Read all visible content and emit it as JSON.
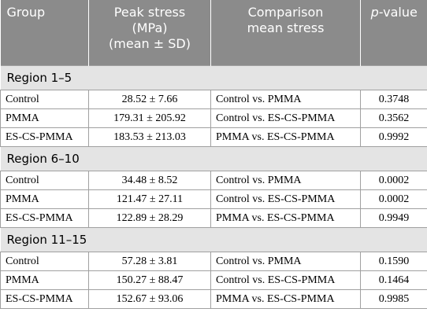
{
  "table": {
    "header": [
      "Group",
      [
        "Peak stress",
        "(MPa)",
        "(mean ± SD)"
      ],
      [
        "Comparison",
        "mean stress"
      ],
      [
        "p",
        "-value"
      ]
    ],
    "sections": [
      {
        "title": "Region 1–5",
        "rows": [
          [
            "Control",
            "28.52 ± 7.66",
            "Control vs. PMMA",
            "0.3748"
          ],
          [
            "PMMA",
            "179.31 ± 205.92",
            "Control vs. ES-CS-PMMA",
            "0.3562"
          ],
          [
            "ES-CS-PMMA",
            "183.53 ± 213.03",
            "PMMA vs. ES-CS-PMMA",
            "0.9992"
          ]
        ]
      },
      {
        "title": "Region 6–10",
        "rows": [
          [
            "Control",
            "34.48 ± 8.52",
            "Control vs. PMMA",
            "0.0002"
          ],
          [
            "PMMA",
            "121.47 ± 27.11",
            "Control vs. ES-CS-PMMA",
            "0.0002"
          ],
          [
            "ES-CS-PMMA",
            "122.89 ± 28.29",
            "PMMA vs. ES-CS-PMMA",
            "0.9949"
          ]
        ]
      },
      {
        "title": "Region 11–15",
        "rows": [
          [
            "Control",
            "57.28 ± 3.81",
            "Control vs. PMMA",
            "0.1590"
          ],
          [
            "PMMA",
            "150.27 ± 88.47",
            "Control vs. ES-CS-PMMA",
            "0.1464"
          ],
          [
            "ES-CS-PMMA",
            "152.67 ± 93.06",
            "PMMA vs. ES-CS-PMMA",
            "0.9985"
          ]
        ]
      }
    ]
  }
}
